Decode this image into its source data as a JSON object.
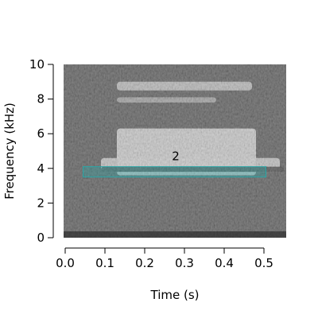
{
  "chart_data": {
    "type": "heatmap",
    "subtype": "spectrogram",
    "title": "",
    "xlabel": "Time (s)",
    "ylabel": "Frequency (kHz)",
    "xlim": [
      -0.005,
      0.555
    ],
    "ylim": [
      0,
      10
    ],
    "x_ticks": [
      0.0,
      0.1,
      0.2,
      0.3,
      0.4,
      0.5
    ],
    "x_tick_labels": [
      "0.0",
      "0.1",
      "0.2",
      "0.3",
      "0.4",
      "0.5"
    ],
    "y_ticks": [
      0,
      2,
      4,
      6,
      8,
      10
    ],
    "y_tick_labels": [
      "0",
      "2",
      "4",
      "6",
      "8",
      "10"
    ],
    "colormap": "grayscale",
    "background_noise_level": 0.32,
    "bands": [
      {
        "t_start": 0.13,
        "t_end": 0.48,
        "f_low": 3.6,
        "f_high": 6.3,
        "intensity": 0.85
      },
      {
        "t_start": 0.09,
        "t_end": 0.54,
        "f_low": 3.8,
        "f_high": 4.6,
        "intensity": 0.8
      },
      {
        "t_start": 0.13,
        "t_end": 0.47,
        "f_low": 8.5,
        "f_high": 9.0,
        "intensity": 0.75
      },
      {
        "t_start": 0.13,
        "t_end": 0.38,
        "f_low": 7.8,
        "f_high": 8.1,
        "intensity": 0.6
      },
      {
        "t_start": 0.09,
        "t_end": 0.55,
        "f_low": 3.8,
        "f_high": 4.1,
        "intensity": 0.05
      }
    ],
    "annotations": [
      {
        "label": "2",
        "t_start": 0.045,
        "t_end": 0.505,
        "f_low": 3.5,
        "f_high": 4.1,
        "color": "#2aa6a6",
        "label_t": 0.278,
        "label_f": 4.7
      }
    ]
  }
}
